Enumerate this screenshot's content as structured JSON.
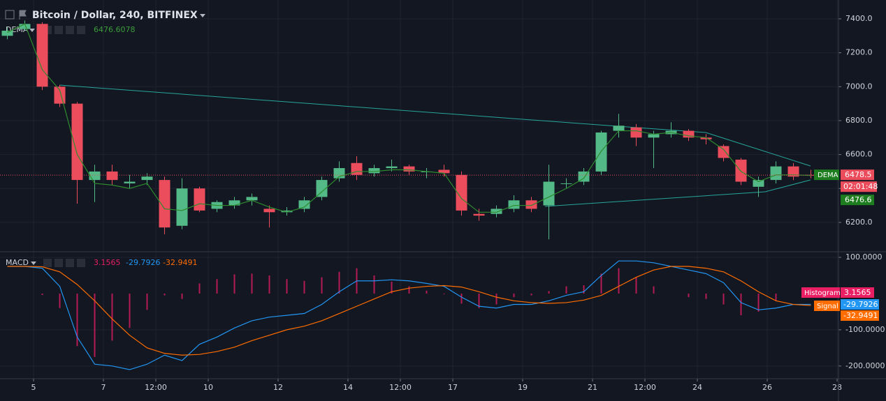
{
  "chart_data": [
    {
      "type": "candlestick",
      "title": "Bitcoin / Dollar, 240, BITFINEX",
      "x": [
        4.25,
        4.75,
        5.25,
        5.75,
        6.25,
        6.75,
        7.25,
        7.75,
        8.25,
        8.75,
        9.25,
        9.75,
        10.25,
        10.75,
        11.25,
        11.75,
        12.25,
        12.75,
        13.25,
        13.75,
        14.25,
        14.75,
        15.25,
        15.75,
        16.25,
        16.75,
        17.25,
        17.75,
        18.25,
        18.75,
        19.25,
        19.75,
        20.25,
        20.75,
        21.25,
        21.75,
        22.25,
        22.75,
        23.25,
        23.75,
        24.25,
        24.75,
        25.25,
        25.75,
        26.25,
        26.75,
        27.25
      ],
      "open": [
        7300,
        7340,
        7370,
        7000,
        6900,
        6450,
        6500,
        6430,
        6450,
        6450,
        6180,
        6400,
        6280,
        6300,
        6330,
        6280,
        6260,
        6280,
        6350,
        6460,
        6550,
        6490,
        6520,
        6530,
        6500,
        6510,
        6480,
        6250,
        6250,
        6280,
        6330,
        6300,
        6430,
        6440,
        6500,
        6740,
        6760,
        6700,
        6720,
        6740,
        6700,
        6650,
        6570,
        6410,
        6450,
        6530,
        6480
      ],
      "high": [
        7350,
        7390,
        7380,
        7010,
        6910,
        6540,
        6540,
        6480,
        6490,
        6470,
        6460,
        6410,
        6330,
        6350,
        6370,
        6300,
        6290,
        6350,
        6470,
        6560,
        6590,
        6540,
        6570,
        6540,
        6520,
        6540,
        6500,
        6280,
        6300,
        6360,
        6350,
        6540,
        6460,
        6520,
        6740,
        6840,
        6780,
        6740,
        6790,
        6750,
        6720,
        6660,
        6580,
        6470,
        6560,
        6550,
        6510
      ],
      "low": [
        7280,
        7330,
        6980,
        6880,
        6310,
        6320,
        6420,
        6400,
        6420,
        6130,
        6160,
        6260,
        6260,
        6280,
        6300,
        6170,
        6240,
        6260,
        6330,
        6440,
        6450,
        6470,
        6500,
        6480,
        6460,
        6470,
        6240,
        6210,
        6230,
        6260,
        6260,
        6100,
        6400,
        6420,
        6480,
        6700,
        6650,
        6520,
        6700,
        6680,
        6660,
        6560,
        6420,
        6350,
        6430,
        6450,
        6460
      ],
      "close": [
        7330,
        7370,
        7000,
        6900,
        6450,
        6500,
        6450,
        6440,
        6470,
        6170,
        6400,
        6270,
        6320,
        6330,
        6350,
        6260,
        6270,
        6330,
        6450,
        6520,
        6480,
        6520,
        6530,
        6500,
        6500,
        6490,
        6270,
        6240,
        6280,
        6330,
        6280,
        6440,
        6430,
        6500,
        6730,
        6770,
        6700,
        6720,
        6740,
        6700,
        6690,
        6580,
        6440,
        6450,
        6530,
        6470,
        6478.5
      ],
      "up_color": "#53b987",
      "down_color": "#eb4d5c",
      "close_label": "6478.5",
      "countdown": "02:01:48",
      "dema": {
        "name": "DEMA",
        "color": "#2e8b2e",
        "legend_value": "6476.6078",
        "badge": "6476.6",
        "values": [
          7320,
          7370,
          7100,
          6980,
          6600,
          6430,
          6420,
          6400,
          6430,
          6280,
          6270,
          6310,
          6300,
          6300,
          6330,
          6290,
          6260,
          6290,
          6380,
          6470,
          6500,
          6500,
          6510,
          6510,
          6500,
          6490,
          6340,
          6260,
          6260,
          6300,
          6300,
          6350,
          6400,
          6460,
          6620,
          6740,
          6740,
          6720,
          6730,
          6710,
          6700,
          6630,
          6500,
          6440,
          6480,
          6480,
          6476.6078
        ]
      },
      "xlim": [
        4.04,
        28.04
      ],
      "xticks": [
        5,
        7,
        {
          "value": 8.5,
          "label": "12:00"
        },
        10,
        12,
        14,
        {
          "value": 15.5,
          "label": "12:00"
        },
        17,
        19,
        21,
        {
          "value": 22.5,
          "label": "12:00"
        },
        24,
        26,
        28
      ],
      "ylim": [
        6031,
        7511
      ],
      "yticks": [
        {
          "value": 6200,
          "label": "6200.0"
        },
        {
          "value": 6400,
          "label": "6400.0"
        },
        {
          "value": 6600,
          "label": "6600.0"
        },
        {
          "value": 6800,
          "label": "6800.0"
        },
        {
          "value": 7000,
          "label": "7000.0"
        },
        {
          "value": 7200,
          "label": "7200.0"
        },
        {
          "value": 7400,
          "label": "7400.0"
        }
      ],
      "grid": true
    },
    {
      "type": "macd",
      "title": "MACD",
      "series": [
        {
          "name": "Histogram",
          "color": "#e91e63",
          "value_label": "3.1565",
          "values": [
            0,
            0,
            -4,
            -40,
            -145,
            -175,
            -130,
            -95,
            -45,
            -5,
            -15,
            28,
            40,
            53,
            55,
            50,
            40,
            35,
            45,
            60,
            70,
            50,
            33,
            20,
            8,
            -2,
            -28,
            -40,
            -30,
            -10,
            -5,
            7,
            20,
            23,
            55,
            70,
            45,
            20,
            0,
            -10,
            -15,
            -30,
            -60,
            -50,
            -20,
            0,
            3.1565
          ]
        },
        {
          "color": "#2196f3",
          "value_label": "-29.7926",
          "values": [
            75,
            75,
            70,
            20,
            -120,
            -195,
            -200,
            -210,
            -195,
            -170,
            -185,
            -140,
            -120,
            -95,
            -75,
            -65,
            -60,
            -55,
            -30,
            5,
            35,
            35,
            38,
            35,
            28,
            20,
            -10,
            -35,
            -40,
            -30,
            -30,
            -20,
            -5,
            5,
            50,
            90,
            90,
            85,
            75,
            65,
            55,
            30,
            -25,
            -45,
            -40,
            -30,
            -29.7926
          ]
        },
        {
          "name": "Signal",
          "color": "#ff6d00",
          "value_label": "-32.9491",
          "values": [
            75,
            75,
            74,
            60,
            25,
            -20,
            -70,
            -115,
            -150,
            -165,
            -170,
            -168,
            -160,
            -148,
            -130,
            -115,
            -100,
            -90,
            -75,
            -55,
            -35,
            -15,
            5,
            15,
            20,
            22,
            18,
            5,
            -10,
            -20,
            -25,
            -27,
            -25,
            -18,
            -5,
            20,
            45,
            65,
            75,
            75,
            70,
            60,
            35,
            5,
            -20,
            -30,
            -32.9491
          ]
        }
      ],
      "ylim": [
        -235,
        113.5
      ],
      "yticks": [
        {
          "value": -200,
          "label": "-200.0000"
        },
        {
          "value": -100,
          "label": "-100.0000"
        },
        {
          "value": 100,
          "label": "100.0000"
        }
      ],
      "grid": true
    }
  ]
}
